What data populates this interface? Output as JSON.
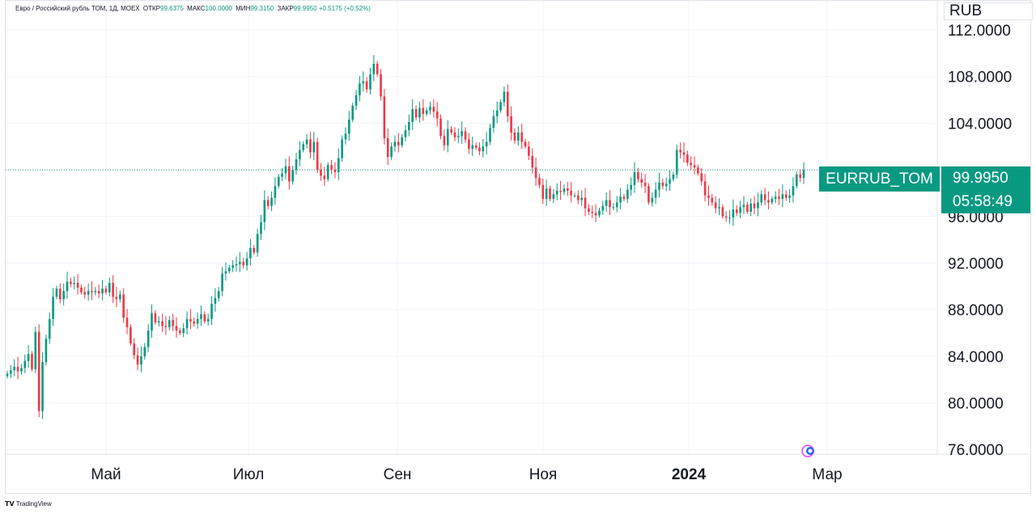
{
  "legend": {
    "title": "Евро / Российский рубль ТОМ, 1Д, MOEX",
    "open_label": "ОТКР",
    "open": "99.6375",
    "high_label": "МАКС",
    "high": "100.0000",
    "low_label": "МИН",
    "low": "99.3150",
    "close_label": "ЗАКР",
    "close": "99.9950",
    "change": "+0.5175 (+0.52%)"
  },
  "currency": "RUB",
  "symbol_tag": "EURRUB_TOM",
  "last_price": "99.9950",
  "countdown": "05:58:49",
  "branding": "TradingView",
  "colors": {
    "up": "#089981",
    "down": "#F23645",
    "grid": "#f0f3fa",
    "text": "#131722"
  },
  "chart_data": {
    "type": "candlestick",
    "title": "Евро / Российский рубль ТОМ, 1Д, MOEX",
    "xlabel": "",
    "ylabel": "RUB",
    "x_ticks": [
      "Май",
      "Июл",
      "Сен",
      "Ноя",
      "2024",
      "Мар"
    ],
    "y_ticks": [
      "76.0000",
      "80.0000",
      "84.0000",
      "88.0000",
      "92.0000",
      "96.0000",
      "104.0000",
      "108.0000",
      "112.0000"
    ],
    "ylim": [
      75.6,
      114.5
    ],
    "last_value": 99.995,
    "grid": true,
    "closes": [
      [
        82.5,
        82.8,
        83.1,
        82.7,
        83.0,
        83.6,
        84.2,
        82.9,
        86.1,
        79.3,
        83.5,
        85.5,
        87.2,
        89.1,
        89.8,
        88.9,
        89.6,
        90.4,
        90.2,
        90.3,
        89.9,
        89.5,
        89.3,
        89.6,
        89.5,
        89.6,
        89.4,
        89.8,
        89.5,
        90.3,
        89.1,
        88.9,
        89.3
      ],
      [
        87.3,
        86.5,
        85.1,
        84.1,
        83.3,
        84.0,
        84.8,
        86.2,
        87.7,
        86.9,
        87.0,
        86.6,
        86.5,
        87.1,
        86.6,
        86.2,
        86.0,
        86.4,
        87.2,
        87.0,
        86.8,
        87.2,
        87.6,
        87.0,
        87.2,
        88.5,
        89.0,
        89.6,
        91.1,
        91.3,
        91.6,
        91.8,
        91.9,
        92.1,
        91.8,
        92.4,
        93.3,
        92.9,
        94.5,
        95.5,
        97.4,
        96.9,
        97.6,
        98.6,
        99.4,
        99.7,
        100.3,
        99.0,
        100.0,
        100.9,
        101.7,
        102.2,
        102.6,
        101.5,
        102.4,
        100.0,
        99.5,
        99.2,
        100.4,
        100.0,
        99.8,
        101.0,
        102.6,
        103.1,
        104.3,
        105.5,
        106.4,
        107.4,
        107.6,
        106.9,
        108.2,
        109.1,
        108.2,
        106.3,
        102.7,
        101.1,
        102.0,
        102.4,
        102.1,
        102.8
      ],
      [
        103.4,
        104.1,
        105.2,
        104.5,
        105.3,
        104.8,
        105.1,
        105.4,
        105.0,
        104.4,
        102.9,
        102.1,
        103.5,
        103.2,
        102.8,
        102.9,
        103.3,
        102.6,
        101.8,
        102.1,
        101.9,
        101.6,
        102.0,
        102.4,
        103.6,
        104.6,
        105.1,
        105.8,
        106.7,
        104.6,
        103.2,
        102.5,
        103.2,
        102.4,
        102.0,
        101.2,
        100.2,
        99.3,
        98.7,
        97.5,
        98.4,
        97.5,
        97.9,
        98.2,
        98.1,
        98.4,
        98.2,
        97.8,
        97.8,
        97.4,
        97.6,
        96.7,
        96.4,
        96.3,
        96.1,
        96.5,
        96.9,
        97.4,
        96.8,
        96.8,
        97.2,
        97.7,
        97.5,
        98.3,
        98.7,
        99.8,
        99.2,
        98.9,
        98.6,
        97.2,
        97.6,
        98.3,
        98.9,
        98.6,
        98.8,
        99.2,
        99.6,
        101.7,
        101.5,
        101.3,
        100.6,
        100.4,
        100.2,
        99.7,
        99.0,
        97.8,
        97.6,
        97.2,
        96.7,
        96.8,
        96.0,
        95.9,
        95.9,
        96.6,
        96.3,
        96.8,
        97.0,
        96.4,
        97.1,
        96.7,
        97.2,
        97.9,
        97.4,
        97.2,
        97.5,
        97.7,
        97.5,
        97.9,
        97.6,
        97.8,
        98.6,
        99.6,
        99.3,
        99.995
      ]
    ]
  }
}
